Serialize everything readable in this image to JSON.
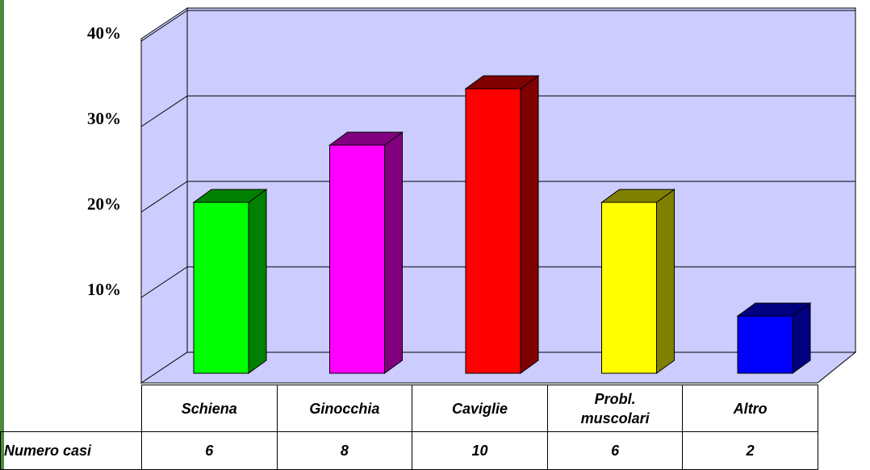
{
  "chart_data": {
    "type": "bar",
    "categories": [
      "Schiena",
      "Ginocchia",
      "Caviglie",
      "Probl. muscolari",
      "Altro"
    ],
    "values": [
      20,
      26.7,
      33.3,
      20,
      6.7
    ],
    "colors": [
      "#00ff00",
      "#ff00ff",
      "#ff0000",
      "#ffff00",
      "#0000ff"
    ],
    "ylim": [
      0,
      40
    ],
    "yticks": [
      {
        "value": 10,
        "label": "10%"
      },
      {
        "value": 20,
        "label": "20%"
      },
      {
        "value": 30,
        "label": "30%"
      },
      {
        "value": 40,
        "label": "40%"
      }
    ],
    "grid": true,
    "table": {
      "row_label": "Numero casi",
      "counts": [
        "6",
        "8",
        "10",
        "6",
        "2"
      ]
    }
  }
}
